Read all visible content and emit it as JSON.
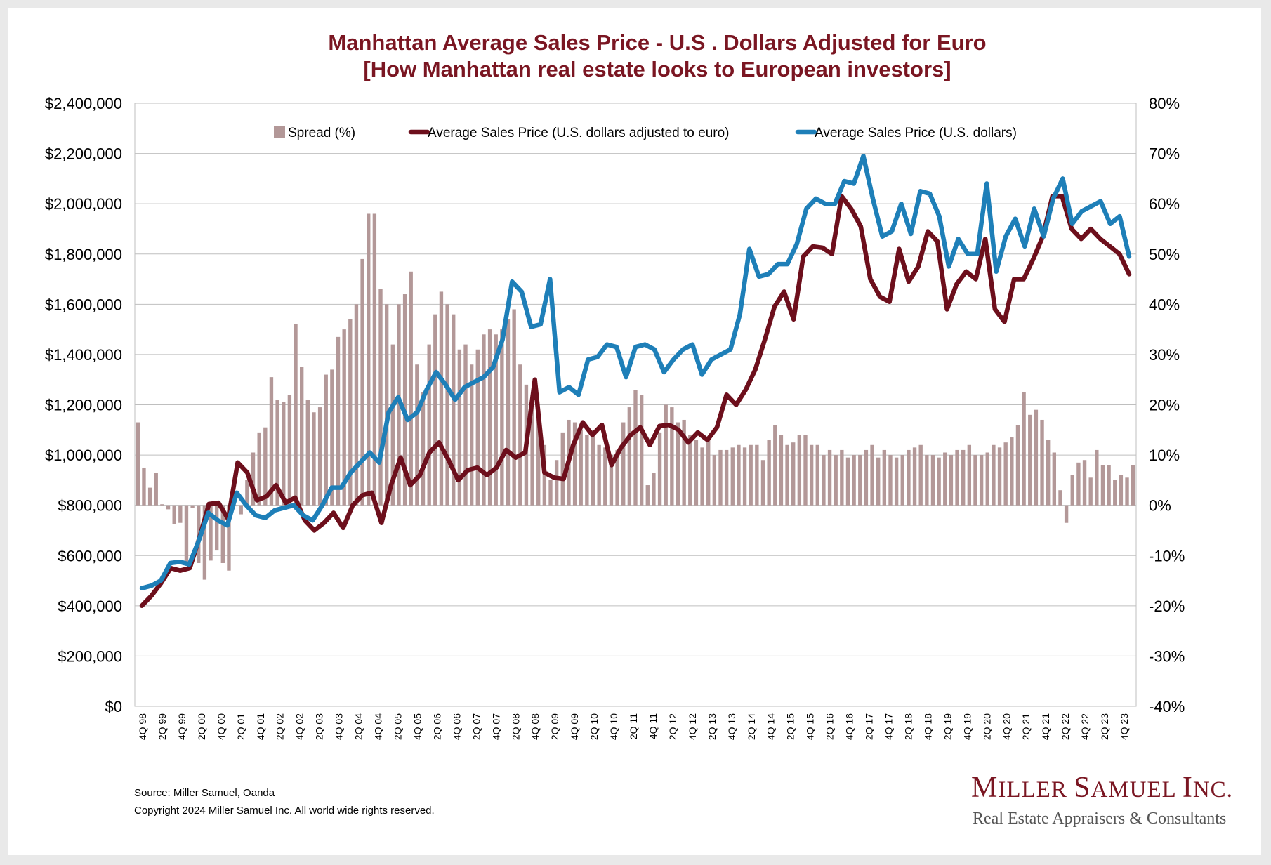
{
  "title_line1": "Manhattan Average Sales Price - U.S . Dollars Adjusted for Euro",
  "title_line2": "[How Manhattan real estate looks to European investors]",
  "source": "Source: Miller Samuel, Oanda",
  "copyright": "Copyright 2024 Miller Samuel Inc.  All world wide rights reserved.",
  "logo_name_parts": [
    "M",
    "ILLER ",
    "S",
    "AMUEL ",
    "I",
    "NC."
  ],
  "logo_tagline": "Real Estate Appraisers & Consultants",
  "colors": {
    "title": "#7a1622",
    "spread_bar": "#b39898",
    "euro_line": "#6d0f1c",
    "usd_line": "#1e7fb8",
    "grid": "#bfbfbf"
  },
  "chart_data": {
    "type": "bar+line",
    "legend_position": "top",
    "grid": true,
    "x_tick_labels": [
      "4Q 98",
      "2Q 99",
      "4Q 99",
      "2Q 00",
      "4Q 00",
      "2Q 01",
      "4Q 01",
      "2Q 02",
      "4Q 02",
      "2Q 03",
      "4Q 03",
      "2Q 04",
      "4Q 04",
      "2Q 05",
      "4Q 05",
      "2Q 06",
      "4Q 06",
      "2Q 07",
      "4Q 07",
      "2Q 08",
      "4Q 08",
      "2Q 09",
      "4Q 09",
      "2Q 10",
      "4Q 10",
      "2Q 11",
      "4Q 11",
      "2Q 12",
      "4Q 12",
      "2Q 13",
      "4Q 13",
      "2Q 14",
      "4Q 14",
      "2Q 15",
      "4Q 15",
      "2Q 16",
      "4Q 16",
      "2Q 17",
      "4Q 17",
      "2Q 18",
      "4Q 18",
      "2Q 19",
      "4Q 19",
      "2Q 20",
      "4Q 20",
      "2Q 21",
      "4Q 21",
      "2Q 22",
      "4Q 22",
      "2Q 23",
      "4Q 23"
    ],
    "y_left": {
      "range": [
        0,
        2400000
      ],
      "ticks": [
        "$0",
        "$200,000",
        "$400,000",
        "$600,000",
        "$800,000",
        "$1,000,000",
        "$1,200,000",
        "$1,400,000",
        "$1,600,000",
        "$1,800,000",
        "$2,000,000",
        "$2,200,000",
        "$2,400,000"
      ]
    },
    "y_right": {
      "range": [
        -40,
        80
      ],
      "ticks": [
        "-40%",
        "-30%",
        "-20%",
        "-10%",
        "0%",
        "10%",
        "20%",
        "30%",
        "40%",
        "50%",
        "60%",
        "70%",
        "80%"
      ]
    },
    "series": [
      {
        "name": "Spread (%)",
        "type": "bar",
        "axis": "right",
        "values": [
          16.5,
          7.5,
          3.5,
          6.5,
          0.2,
          -0.8,
          -3.8,
          -3.5,
          -11.8,
          -0.5,
          -11.5,
          -14.8,
          -11,
          -9,
          -11.5,
          -13,
          -0.2,
          -1.8,
          5,
          10.5,
          14.5,
          15.5,
          25.5,
          21,
          20.5,
          22,
          36,
          27.5,
          21,
          18.5,
          19.5,
          26,
          27,
          33.5,
          35,
          37,
          40,
          49,
          58,
          58,
          43,
          40,
          32,
          40,
          42,
          46.5,
          28,
          22.5,
          32,
          38,
          42.5,
          40,
          38,
          31,
          32,
          28,
          31,
          34,
          35,
          34,
          35,
          37,
          39,
          28,
          24,
          22,
          18.5,
          12,
          5,
          9,
          14.5,
          17,
          16.5,
          15,
          14,
          15,
          12,
          11.5,
          10,
          11,
          16.5,
          19.5,
          23,
          22,
          4,
          6.5,
          14.5,
          20,
          19.5,
          16.5,
          17,
          14,
          13,
          11.5,
          13,
          10,
          11,
          11,
          11.5,
          12,
          11.5,
          12,
          12,
          9,
          13,
          16,
          14,
          12,
          12.5,
          14,
          14,
          12,
          12,
          10,
          11,
          10,
          11,
          9.5,
          10,
          10,
          11,
          12,
          9.5,
          11,
          10,
          9.5,
          10,
          11,
          11.5,
          12,
          10,
          10,
          9.5,
          10.5,
          10,
          11,
          11,
          12,
          10,
          10,
          10.5,
          12,
          11.5,
          12.5,
          13.5,
          16,
          22.5,
          18,
          19,
          17,
          13,
          10.5,
          3,
          -3.5,
          6,
          8.5,
          9,
          5.5,
          11,
          8,
          8,
          5,
          6,
          5.5,
          8
        ]
      },
      {
        "name": "Average Sales Price (U.S. dollars adjusted to euro)",
        "type": "line",
        "axis": "left",
        "values": [
          400000,
          440000,
          490000,
          550000,
          540000,
          550000,
          670000,
          805000,
          810000,
          745000,
          970000,
          930000,
          820000,
          835000,
          880000,
          810000,
          830000,
          740000,
          700000,
          730000,
          770000,
          710000,
          800000,
          840000,
          850000,
          730000,
          880000,
          990000,
          880000,
          920000,
          1010000,
          1050000,
          980000,
          900000,
          940000,
          950000,
          920000,
          950000,
          1020000,
          990000,
          1010000,
          1300000,
          930000,
          910000,
          905000,
          1040000,
          1130000,
          1080000,
          1120000,
          960000,
          1030000,
          1080000,
          1110000,
          1040000,
          1115000,
          1120000,
          1100000,
          1050000,
          1090000,
          1060000,
          1110000,
          1240000,
          1200000,
          1260000,
          1340000,
          1460000,
          1590000,
          1650000,
          1540000,
          1790000,
          1830000,
          1825000,
          1800000,
          2030000,
          1980000,
          1910000,
          1700000,
          1630000,
          1610000,
          1820000,
          1690000,
          1750000,
          1890000,
          1850000,
          1580000,
          1680000,
          1730000,
          1700000,
          1860000,
          1580000,
          1530000,
          1700000,
          1700000,
          1780000,
          1870000,
          2030000,
          2030000,
          1900000,
          1860000,
          1900000,
          1860000,
          1830000,
          1800000,
          1720000
        ]
      },
      {
        "name": "Average Sales Price (U.S. dollars)",
        "type": "line",
        "axis": "left",
        "values": [
          470000,
          480000,
          500000,
          570000,
          575000,
          565000,
          660000,
          770000,
          740000,
          720000,
          850000,
          800000,
          760000,
          750000,
          780000,
          790000,
          800000,
          760000,
          740000,
          800000,
          870000,
          870000,
          930000,
          970000,
          1010000,
          970000,
          1170000,
          1230000,
          1140000,
          1170000,
          1260000,
          1330000,
          1280000,
          1220000,
          1270000,
          1290000,
          1310000,
          1350000,
          1460000,
          1690000,
          1650000,
          1510000,
          1520000,
          1700000,
          1250000,
          1270000,
          1240000,
          1380000,
          1390000,
          1440000,
          1430000,
          1310000,
          1430000,
          1440000,
          1420000,
          1330000,
          1380000,
          1420000,
          1440000,
          1320000,
          1380000,
          1400000,
          1420000,
          1560000,
          1820000,
          1710000,
          1720000,
          1760000,
          1760000,
          1840000,
          1980000,
          2020000,
          2000000,
          2000000,
          2090000,
          2080000,
          2190000,
          2020000,
          1870000,
          1890000,
          2000000,
          1880000,
          2050000,
          2040000,
          1950000,
          1750000,
          1860000,
          1800000,
          1800000,
          2080000,
          1730000,
          1870000,
          1940000,
          1830000,
          1980000,
          1870000,
          2020000,
          2100000,
          1920000,
          1970000,
          1990000,
          2010000,
          1920000,
          1950000,
          1790000
        ]
      }
    ]
  }
}
